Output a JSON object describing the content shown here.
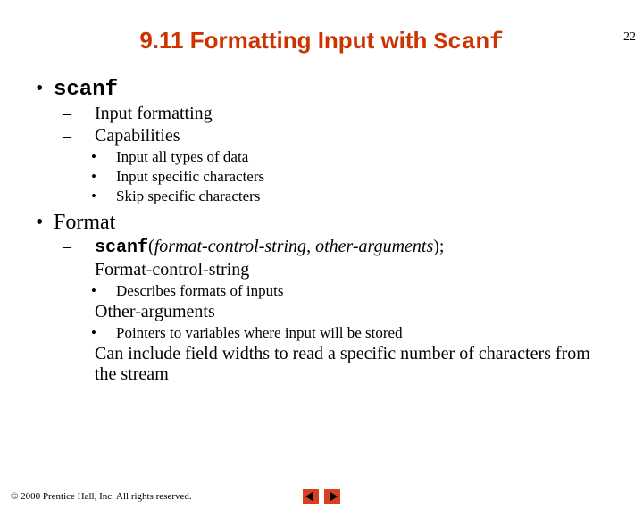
{
  "page_number": "22",
  "title_prefix": "9.11   Formatting Input with ",
  "title_mono": "Scanf",
  "colors": {
    "title": "#cc3300",
    "arrow_bg": "#d84020",
    "text": "#000000",
    "background": "#ffffff"
  },
  "bullets": {
    "l1_a": "scanf",
    "l2_a1": "Input formatting",
    "l2_a2": "Capabilities",
    "l3_a2_1": "Input all types of data",
    "l3_a2_2": "Input specific characters",
    "l3_a2_3": "Skip specific characters",
    "l1_b": "Format",
    "l2_b1_mono": "scanf",
    "l2_b1_open": "(",
    "l2_b1_arg1": "format-control-string",
    "l2_b1_sep": ", ",
    "l2_b1_arg2": "other-arguments",
    "l2_b1_close": ");",
    "l2_b2": "Format-control-string",
    "l3_b2_1": "Describes formats of inputs",
    "l2_b3": "Other-arguments",
    "l3_b3_1": "Pointers to variables where input will be stored",
    "l2_b4": "Can include field widths to read a specific number of characters from the stream"
  },
  "footer": "© 2000 Prentice Hall, Inc.  All rights reserved."
}
